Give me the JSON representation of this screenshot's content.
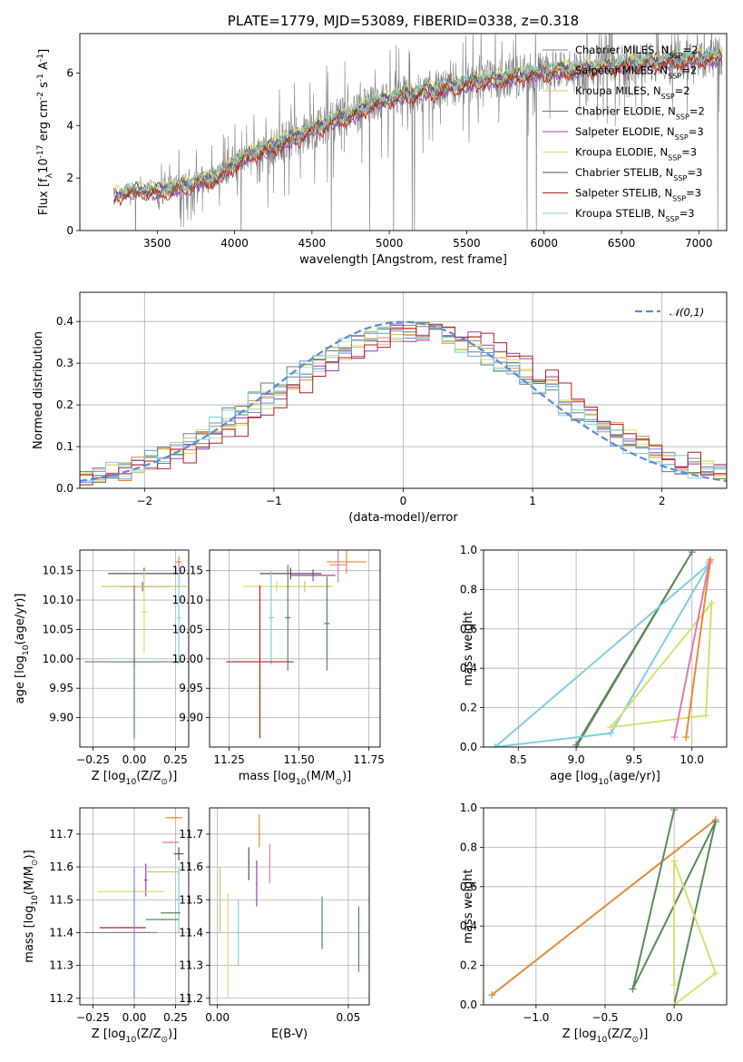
{
  "figure_title": "PLATE=1779, MJD=53089, FIBERID=0338, z=0.318",
  "colors": {
    "chabrier_miles": "#808080",
    "salpeter_miles": "#e8893a",
    "kroupa_miles": "#d9c36a",
    "chabrier_elodie": "#5a8a5a",
    "salpeter_elodie": "#9b3fb5",
    "kroupa_elodie": "#d8e070",
    "chabrier_stelib": "#555555",
    "salpeter_stelib": "#b22020",
    "kroupa_stelib": "#7fd0e0",
    "normal": "#5b8bd9",
    "extra_pink": "#e07ab0",
    "extra_blue": "#6a8fe0"
  },
  "chart_data": [
    {
      "id": "spectrum",
      "type": "line",
      "xlabel": "wavelength [Angstrom, rest frame]",
      "ylabel": "Flux [f$_\\lambda$10$^{-17}$ erg cm$^{-2}$ s$^{-1}$ A$^{-1}$]",
      "xlim": [
        3000,
        7180
      ],
      "ylim": [
        0,
        7.5
      ],
      "xticks": [
        "3500",
        "4000",
        "4500",
        "5000",
        "5500",
        "6000",
        "6500",
        "7000"
      ],
      "yticks": [
        "0",
        "2",
        "4",
        "6"
      ],
      "legend_position": "top-right",
      "series": [
        {
          "name": "Chabrier MILES, N$_{SSP}$=2"
        },
        {
          "name": "Salpeter MILES, N$_{SSP}$=2"
        },
        {
          "name": "Kroupa MILES, N$_{SSP}$=2"
        },
        {
          "name": "Chabrier ELODIE, N$_{SSP}$=2"
        },
        {
          "name": "Salpeter ELODIE, N$_{SSP}$=3"
        },
        {
          "name": "Kroupa ELODIE, N$_{SSP}$=3"
        },
        {
          "name": "Chabrier STELIB, N$_{SSP}$=3"
        },
        {
          "name": "Salpeter STELIB, N$_{SSP}$=3"
        },
        {
          "name": "Kroupa STELIB, N$_{SSP}$=3"
        }
      ],
      "model_continuum": {
        "x": [
          3220,
          3300,
          3400,
          3500,
          3600,
          3700,
          3800,
          3900,
          4000,
          4100,
          4200,
          4300,
          4400,
          4500,
          4600,
          4700,
          4800,
          4900,
          5000,
          5100,
          5200,
          5300,
          5400,
          5500,
          5600,
          5700,
          5800,
          5900,
          6000,
          6100,
          6200,
          6300,
          6400,
          6500,
          6600,
          6700,
          6800,
          6900,
          7000,
          7150
        ],
        "y": [
          1.3,
          1.45,
          1.55,
          1.5,
          1.6,
          1.75,
          1.95,
          2.0,
          2.55,
          2.9,
          3.1,
          3.35,
          3.55,
          3.85,
          4.1,
          4.3,
          4.5,
          4.85,
          5.0,
          5.15,
          5.25,
          5.35,
          5.5,
          5.6,
          5.7,
          5.75,
          5.85,
          5.95,
          6.05,
          6.1,
          6.15,
          6.2,
          6.25,
          6.3,
          6.35,
          6.4,
          6.45,
          6.5,
          6.55,
          6.6
        ]
      }
    },
    {
      "id": "residuals",
      "type": "line",
      "xlabel": "(data-model)/error",
      "ylabel": "Normed distribution",
      "xlim": [
        -2.5,
        2.5
      ],
      "ylim": [
        0,
        0.47
      ],
      "xticks": [
        "−2",
        "−1",
        "0",
        "1",
        "2"
      ],
      "yticks": [
        "0.0",
        "0.1",
        "0.2",
        "0.3",
        "0.4"
      ],
      "legend": "$\\mathcal{N}(0,1)$",
      "legend_position": "top-right",
      "series": [
        {
          "name": "$\\mathcal{N}(0,1)$",
          "mean": 0,
          "sigma": 1
        }
      ]
    },
    {
      "id": "age_vs_Z",
      "type": "scatter",
      "xlabel": "Z [log$_{10}$(Z/Z$_\\odot$)]",
      "ylabel": "age  [log$_{10}$(age/yr)]",
      "xlim": [
        -0.33,
        0.33
      ],
      "ylim": [
        9.85,
        10.185
      ],
      "xticks": [
        "−0.25",
        "0.00",
        "0.25"
      ],
      "yticks": [
        "9.90",
        "9.95",
        "10.00",
        "10.05",
        "10.10",
        "10.15"
      ],
      "points": [
        {
          "x": 0.27,
          "y": 10.165,
          "xerr": 0.02,
          "yerr": 0.01
        },
        {
          "x": 0.27,
          "y": 10.145,
          "xerr": 0.03,
          "yerr": 0.02
        },
        {
          "x": 0.06,
          "y": 10.145,
          "xerr": 0.22,
          "yerr": 0.01
        },
        {
          "x": 0.05,
          "y": 10.123,
          "xerr": 0.15,
          "yerr": 0.008
        },
        {
          "x": 0.06,
          "y": 10.123,
          "xerr": 0.26,
          "yerr": 0.012
        },
        {
          "x": 0.06,
          "y": 10.08,
          "xerr": 0.02,
          "yerr": 0.07
        },
        {
          "x": 0.27,
          "y": 10.07,
          "xerr": 0.01,
          "yerr": 0.08
        },
        {
          "x": 0.0,
          "y": 9.995,
          "xerr": 0.15,
          "yerr": 0.13
        },
        {
          "x": 0.0,
          "y": 9.995,
          "xerr": 0.3,
          "yerr": 0.01
        }
      ]
    },
    {
      "id": "age_vs_mass",
      "type": "scatter",
      "xlabel": "mass [log$_{10}$(M/M$_\\odot$)]",
      "ylabel": "",
      "xlim": [
        11.18,
        11.79
      ],
      "ylim": [
        9.85,
        10.185
      ],
      "xticks": [
        "11.25",
        "11.50",
        "11.75"
      ],
      "yticks": [
        "9.90",
        "9.95",
        "10.00",
        "10.05",
        "10.10",
        "10.15"
      ],
      "points": [
        {
          "x": 11.67,
          "y": 10.165,
          "xerr": 0.07,
          "yerr": 0.02
        },
        {
          "x": 11.64,
          "y": 10.16,
          "xerr": 0.03,
          "yerr": 0.03
        },
        {
          "x": 11.47,
          "y": 10.145,
          "xerr": 0.11,
          "yerr": 0.01
        },
        {
          "x": 11.55,
          "y": 10.142,
          "xerr": 0.08,
          "yerr": 0.01
        },
        {
          "x": 11.52,
          "y": 10.123,
          "xerr": 0.1,
          "yerr": 0.01
        },
        {
          "x": 11.42,
          "y": 10.123,
          "xerr": 0.12,
          "yerr": 0.01
        },
        {
          "x": 11.4,
          "y": 10.07,
          "xerr": 0.01,
          "yerr": 0.08
        },
        {
          "x": 11.46,
          "y": 10.07,
          "xerr": 0.01,
          "yerr": 0.09
        },
        {
          "x": 11.6,
          "y": 10.06,
          "xerr": 0.01,
          "yerr": 0.08
        },
        {
          "x": 11.36,
          "y": 9.995,
          "xerr": 0.12,
          "yerr": 0.13
        }
      ]
    },
    {
      "id": "weight_vs_age",
      "type": "line",
      "xlabel": "age  [log$_{10}$(age/yr)]",
      "ylabel": "mass weight",
      "xlim": [
        8.2,
        10.3
      ],
      "ylim": [
        0,
        1.0
      ],
      "xticks": [
        "8.5",
        "9.0",
        "9.5",
        "10.0"
      ],
      "yticks": [
        "0.0",
        "0.2",
        "0.4",
        "0.6",
        "0.8",
        "1.0"
      ],
      "series": [
        {
          "x": [
            9.0,
            10.0,
            9.0
          ],
          "y": [
            0.0,
            0.99,
            0.01
          ]
        },
        {
          "x": [
            8.3,
            9.3,
            10.15,
            8.3
          ],
          "y": [
            0.0,
            0.07,
            0.93,
            0.0
          ]
        },
        {
          "x": [
            9.3,
            10.12,
            10.17,
            9.3
          ],
          "y": [
            0.1,
            0.16,
            0.73,
            0.1
          ]
        },
        {
          "x": [
            9.85,
            10.15
          ],
          "y": [
            0.05,
            0.94
          ]
        },
        {
          "x": [
            9.95,
            10.16
          ],
          "y": [
            0.05,
            0.95
          ]
        }
      ]
    },
    {
      "id": "mass_vs_Z",
      "type": "scatter",
      "xlabel": "Z [log$_{10}$(Z/Z$_\\odot$)]",
      "ylabel": "mass [log$_{10}$(M/M$_\\odot$)]",
      "xlim": [
        -0.33,
        0.33
      ],
      "ylim": [
        11.18,
        11.78
      ],
      "xticks": [
        "−0.25",
        "0.00",
        "0.25"
      ],
      "yticks": [
        "11.2",
        "11.3",
        "11.4",
        "11.5",
        "11.6",
        "11.7"
      ],
      "points": [
        {
          "x": 0.24,
          "y": 11.75,
          "xerr": 0.05,
          "yerr": 0.0
        },
        {
          "x": 0.22,
          "y": 11.675,
          "xerr": 0.05,
          "yerr": 0.0
        },
        {
          "x": 0.27,
          "y": 11.64,
          "xerr": 0.03,
          "yerr": 0.02
        },
        {
          "x": 0.07,
          "y": 11.56,
          "xerr": 0.01,
          "yerr": 0.05
        },
        {
          "x": 0.17,
          "y": 11.585,
          "xerr": 0.1,
          "yerr": 0.0
        },
        {
          "x": -0.02,
          "y": 11.525,
          "xerr": 0.2,
          "yerr": 0.0
        },
        {
          "x": 0.27,
          "y": 11.5,
          "xerr": 0.02,
          "yerr": 0.1
        },
        {
          "x": 0.22,
          "y": 11.46,
          "xerr": 0.06,
          "yerr": 0.0
        },
        {
          "x": 0.17,
          "y": 11.44,
          "xerr": 0.1,
          "yerr": 0.0
        },
        {
          "x": -0.07,
          "y": 11.415,
          "xerr": 0.14,
          "yerr": 0.0
        },
        {
          "x": 0.0,
          "y": 11.4,
          "xerr": 0.14,
          "yerr": 0.2
        },
        {
          "x": -0.1,
          "y": 11.4,
          "xerr": 0.2,
          "yerr": 0.0
        }
      ]
    },
    {
      "id": "mass_vs_ebv",
      "type": "scatter",
      "xlabel": "E(B-V)",
      "ylabel": "",
      "xlim": [
        -0.003,
        0.058
      ],
      "ylim": [
        11.18,
        11.78
      ],
      "xticks": [
        "0.00",
        "0.05"
      ],
      "yticks": [
        "11.2",
        "11.3",
        "11.4",
        "11.5",
        "11.6",
        "11.7"
      ],
      "points": [
        {
          "x": 0.016,
          "y": 11.71,
          "yerr": 0.05
        },
        {
          "x": 0.02,
          "y": 11.61,
          "yerr": 0.06
        },
        {
          "x": 0.012,
          "y": 11.61,
          "yerr": 0.05
        },
        {
          "x": 0.015,
          "y": 11.55,
          "yerr": 0.07
        },
        {
          "x": 0.001,
          "y": 11.5,
          "yerr": 0.1
        },
        {
          "x": 0.004,
          "y": 11.36,
          "yerr": 0.16
        },
        {
          "x": 0.008,
          "y": 11.4,
          "yerr": 0.1
        },
        {
          "x": 0.04,
          "y": 11.43,
          "yerr": 0.08
        },
        {
          "x": 0.054,
          "y": 11.38,
          "yerr": 0.1
        }
      ]
    },
    {
      "id": "weight_vs_Z",
      "type": "line",
      "xlabel": "Z [log$_{10}$(Z/Z$_\\odot$)]",
      "ylabel": "mass weight",
      "xlim": [
        -1.38,
        0.38
      ],
      "ylim": [
        0,
        1.0
      ],
      "xticks": [
        "−1.0",
        "−0.5",
        "0.0"
      ],
      "yticks": [
        "0.0",
        "0.2",
        "0.4",
        "0.6",
        "0.8",
        "1.0"
      ],
      "series": [
        {
          "x": [
            -1.32,
            0.3
          ],
          "y": [
            0.05,
            0.94
          ]
        },
        {
          "x": [
            0.0,
            -0.3,
            0.3,
            0.0
          ],
          "y": [
            0.99,
            0.08,
            0.93,
            0.0
          ]
        },
        {
          "x": [
            0.0,
            0.0,
            0.3,
            0.0
          ],
          "y": [
            0.1,
            0.73,
            0.16,
            0.0
          ]
        }
      ]
    }
  ]
}
